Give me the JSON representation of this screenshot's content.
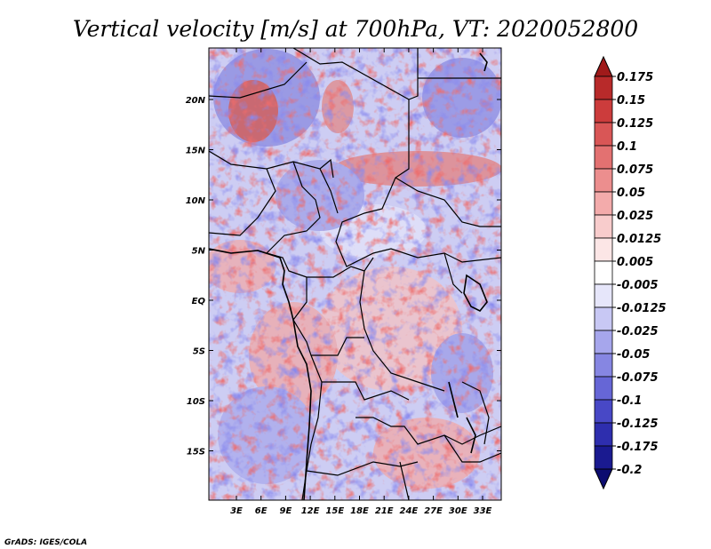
{
  "chart_data": {
    "type": "heatmap",
    "title": "Vertical velocity [m/s] at 700hPa, VT: 2020052800",
    "variable": "Vertical velocity",
    "units": "m/s",
    "level": "700hPa",
    "valid_time": "2020052800",
    "xlabel": "",
    "ylabel": "",
    "x_range": [
      0,
      35
    ],
    "y_range": [
      -20,
      24
    ],
    "x_ticks": [
      {
        "value": 3,
        "label": "3E"
      },
      {
        "value": 6,
        "label": "6E"
      },
      {
        "value": 9,
        "label": "9E"
      },
      {
        "value": 12,
        "label": "12E"
      },
      {
        "value": 15,
        "label": "15E"
      },
      {
        "value": 18,
        "label": "18E"
      },
      {
        "value": 21,
        "label": "21E"
      },
      {
        "value": 24,
        "label": "24E"
      },
      {
        "value": 27,
        "label": "27E"
      },
      {
        "value": 30,
        "label": "30E"
      },
      {
        "value": 33,
        "label": "33E"
      }
    ],
    "y_ticks": [
      {
        "value": 20,
        "label": "20N"
      },
      {
        "value": 15,
        "label": "15N"
      },
      {
        "value": 10,
        "label": "10N"
      },
      {
        "value": 5,
        "label": "5N"
      },
      {
        "value": 0,
        "label": "EQ"
      },
      {
        "value": -5,
        "label": "5S"
      },
      {
        "value": -10,
        "label": "10S"
      },
      {
        "value": -15,
        "label": "15S"
      }
    ],
    "colorbar": {
      "levels": [
        "0.175",
        "0.15",
        "0.125",
        "0.1",
        "0.075",
        "0.05",
        "0.025",
        "0.0125",
        "0.005",
        "-0.005",
        "-0.0125",
        "-0.025",
        "-0.05",
        "-0.075",
        "-0.1",
        "-0.125",
        "-0.175",
        "-0.2"
      ],
      "colors": [
        "#a01a1a",
        "#b82a2a",
        "#cc3c3c",
        "#d95656",
        "#e37171",
        "#ec8e8e",
        "#f3abab",
        "#f8cccc",
        "#fce6e6",
        "#ffffff",
        "#e6e6fa",
        "#c8c8f4",
        "#a6a6ec",
        "#8686e2",
        "#6666d6",
        "#4848c6",
        "#2e2eae",
        "#1a1a90",
        "#0c0c70"
      ]
    }
  },
  "credit": "GrADS: IGES/COLA"
}
